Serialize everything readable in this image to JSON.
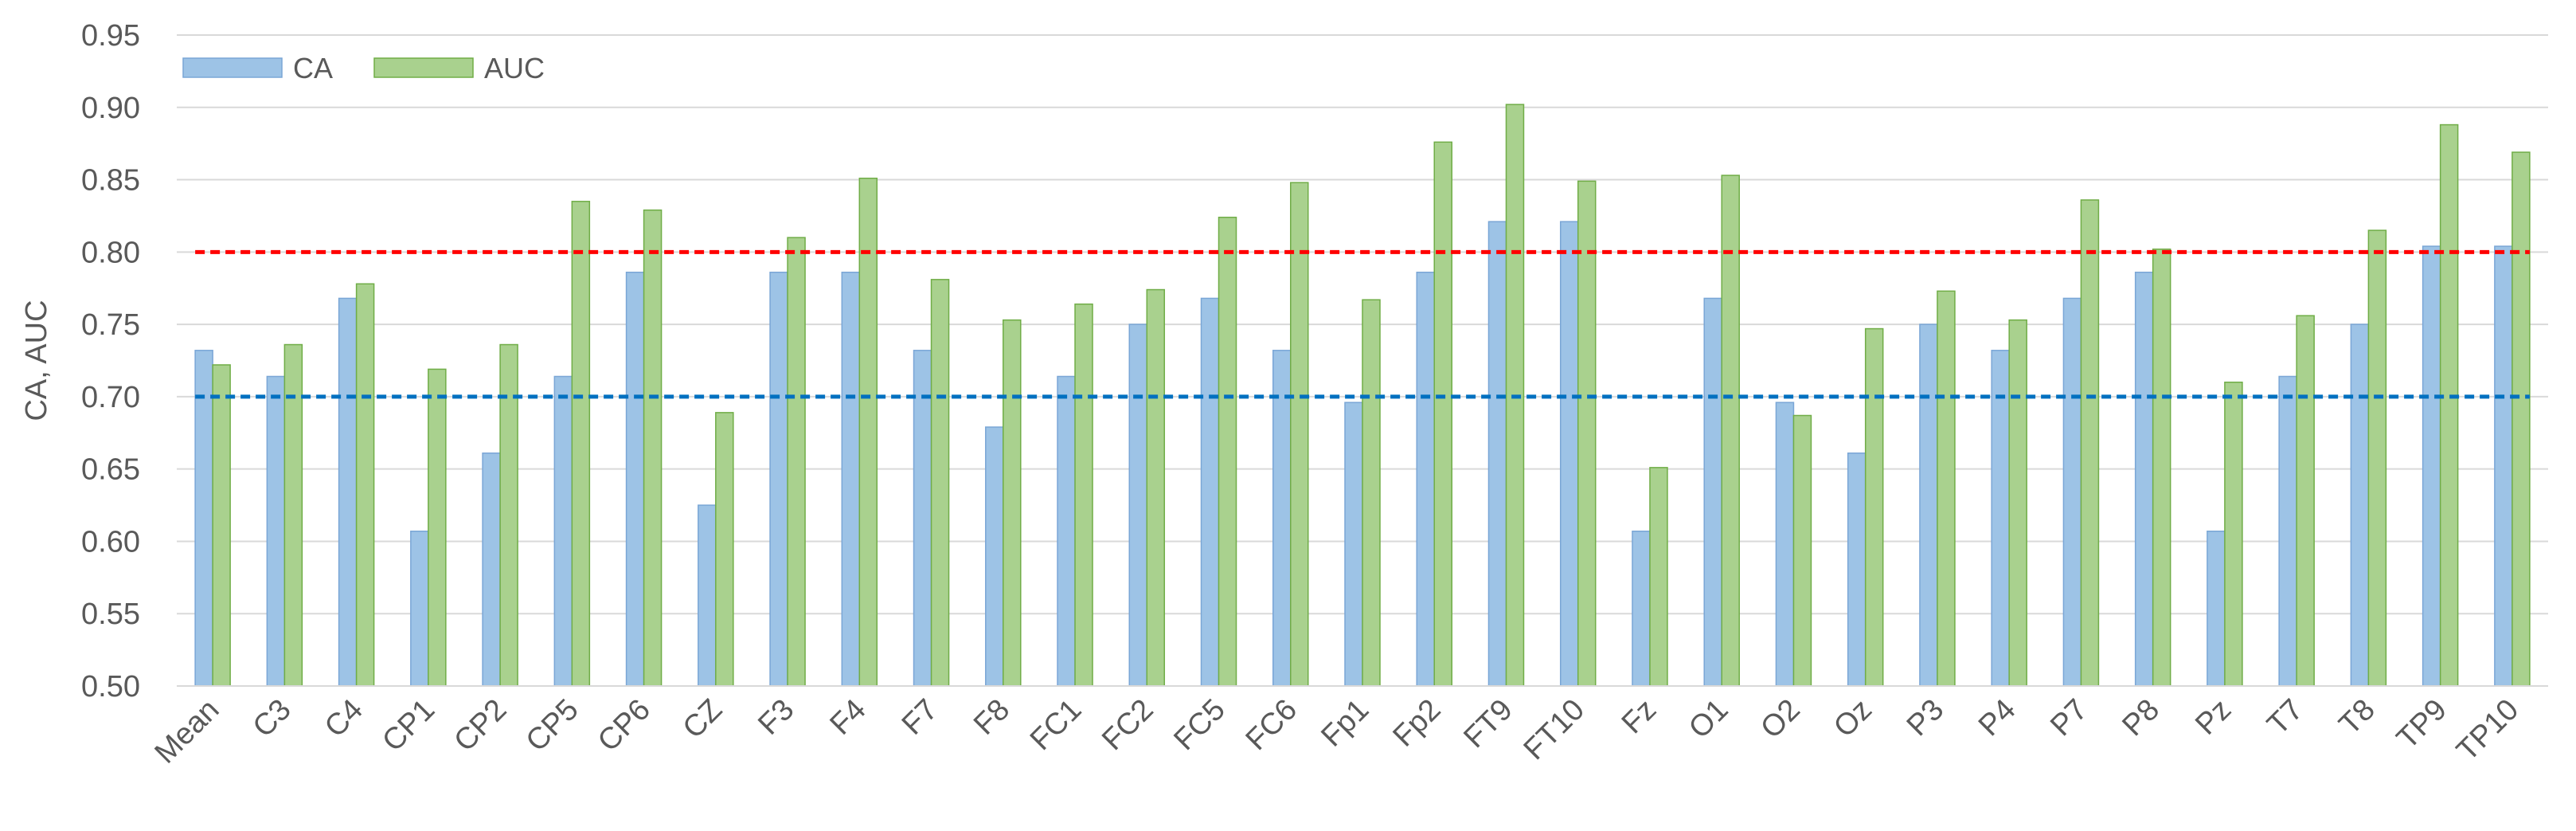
{
  "chart_data": {
    "type": "bar",
    "title": "",
    "xlabel": "",
    "ylabel": "CA, AUC",
    "ylim": [
      0.5,
      0.95
    ],
    "yticks": [
      "0.50",
      "0.55",
      "0.60",
      "0.65",
      "0.70",
      "0.75",
      "0.80",
      "0.85",
      "0.90",
      "0.95"
    ],
    "grid": true,
    "legend_position": "top-left",
    "categories": [
      "Mean",
      "C3",
      "C4",
      "CP1",
      "CP2",
      "CP5",
      "CP6",
      "CZ",
      "F3",
      "F4",
      "F7",
      "F8",
      "FC1",
      "FC2",
      "FC5",
      "FC6",
      "Fp1",
      "Fp2",
      "FT9",
      "FT10",
      "Fz",
      "O1",
      "O2",
      "Oz",
      "P3",
      "P4",
      "P7",
      "P8",
      "Pz",
      "T7",
      "T8",
      "TP9",
      "TP10"
    ],
    "series": [
      {
        "name": "CA",
        "color": "#9dc3e6",
        "border": "#7aa6d6",
        "values": [
          0.732,
          0.714,
          0.768,
          0.607,
          0.661,
          0.714,
          0.786,
          0.625,
          0.786,
          0.786,
          0.732,
          0.679,
          0.714,
          0.75,
          0.768,
          0.732,
          0.696,
          0.786,
          0.821,
          0.821,
          0.607,
          0.768,
          0.696,
          0.661,
          0.75,
          0.732,
          0.768,
          0.786,
          0.607,
          0.714,
          0.75,
          0.804,
          0.804
        ]
      },
      {
        "name": "AUC",
        "color": "#a9d18e",
        "border": "#70ad47",
        "values": [
          0.722,
          0.736,
          0.778,
          0.719,
          0.736,
          0.835,
          0.829,
          0.689,
          0.81,
          0.851,
          0.781,
          0.753,
          0.764,
          0.774,
          0.824,
          0.848,
          0.767,
          0.876,
          0.902,
          0.849,
          0.651,
          0.853,
          0.687,
          0.747,
          0.773,
          0.753,
          0.836,
          0.802,
          0.71,
          0.756,
          0.815,
          0.888,
          0.869
        ]
      }
    ],
    "reference_lines": [
      {
        "value": 0.8,
        "color": "#ff0000",
        "style": "dashed"
      },
      {
        "value": 0.7,
        "color": "#0070c0",
        "style": "dashed"
      }
    ]
  }
}
